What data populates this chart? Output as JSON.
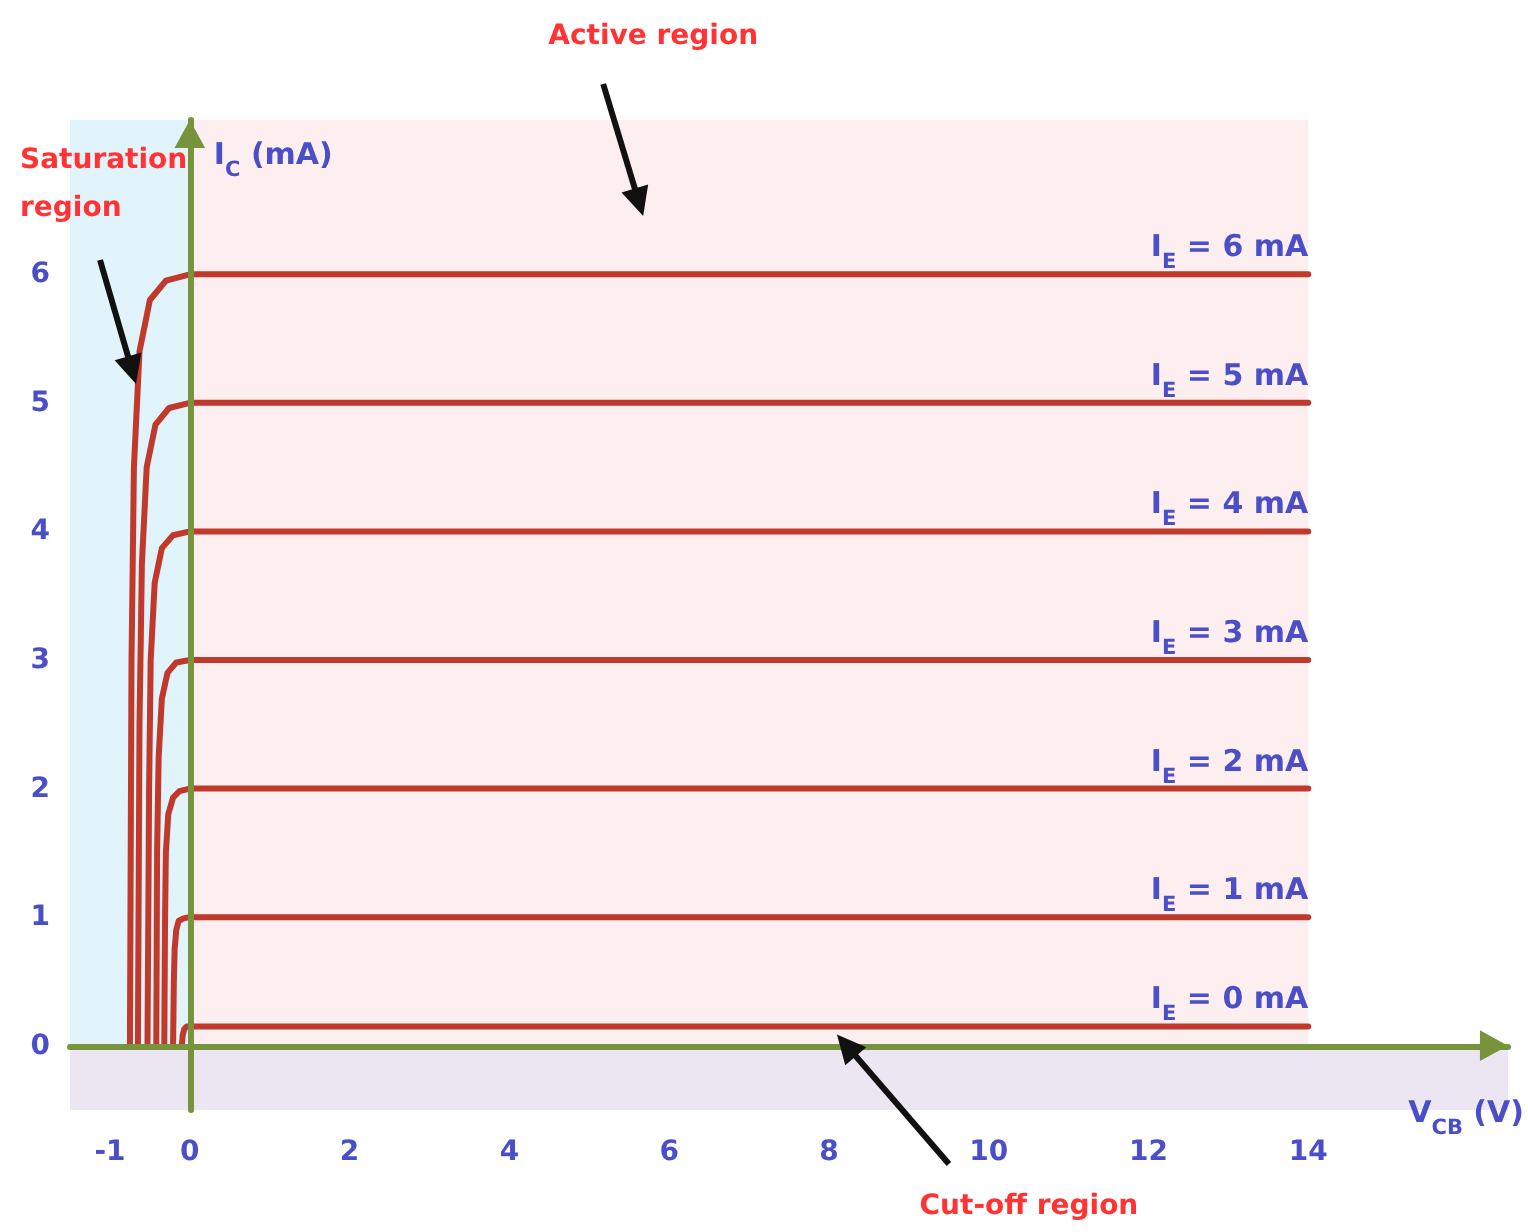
{
  "chart_data": {
    "type": "line",
    "xlabel": "V$_{CB}$ (V)",
    "ylabel": "I$_{C}$ (mA)",
    "xlim": [
      -1.5,
      16.5
    ],
    "ylim": [
      -0.5,
      7.2
    ],
    "xticks": [
      -1,
      0,
      2,
      4,
      6,
      8,
      10,
      12,
      14
    ],
    "yticks": [
      0,
      1,
      2,
      3,
      4,
      5,
      6
    ],
    "marker": "none",
    "line_style": "solid",
    "series": [
      {
        "name": "I$_{E}$ = 6 mA",
        "color": "#c0392b",
        "x": [
          -0.75,
          -0.73,
          -0.7,
          -0.63,
          -0.5,
          -0.3,
          0,
          14
        ],
        "values": [
          0,
          3,
          4.5,
          5.4,
          5.8,
          5.95,
          6,
          6
        ]
      },
      {
        "name": "I$_{E}$ = 5 mA",
        "color": "#c0392b",
        "x": [
          -0.65,
          -0.63,
          -0.6,
          -0.54,
          -0.43,
          -0.26,
          0,
          14
        ],
        "values": [
          0,
          2.5,
          3.75,
          4.5,
          4.83,
          4.96,
          5,
          5
        ]
      },
      {
        "name": "I$_{E}$ = 4 mA",
        "color": "#c0392b",
        "x": [
          -0.53,
          -0.51,
          -0.49,
          -0.44,
          -0.35,
          -0.21,
          0,
          14
        ],
        "values": [
          0,
          2,
          3,
          3.6,
          3.87,
          3.97,
          4,
          4
        ]
      },
      {
        "name": "I$_{E}$ = 3 mA",
        "color": "#c0392b",
        "x": [
          -0.42,
          -0.41,
          -0.39,
          -0.35,
          -0.28,
          -0.17,
          0,
          14
        ],
        "values": [
          0,
          1.5,
          2.25,
          2.7,
          2.9,
          2.98,
          3,
          3
        ]
      },
      {
        "name": "I$_{E}$ = 2 mA",
        "color": "#c0392b",
        "x": [
          -0.32,
          -0.31,
          -0.3,
          -0.27,
          -0.21,
          -0.13,
          0,
          14
        ],
        "values": [
          0,
          1,
          1.5,
          1.8,
          1.93,
          1.98,
          2,
          2
        ]
      },
      {
        "name": "I$_{E}$ = 1 mA",
        "color": "#c0392b",
        "x": [
          -0.21,
          -0.2,
          -0.19,
          -0.17,
          -0.14,
          -0.08,
          0,
          14
        ],
        "values": [
          0,
          0.5,
          0.75,
          0.9,
          0.97,
          0.99,
          1,
          1
        ]
      },
      {
        "name": "I$_{E}$ = 0 mA",
        "color": "#c0392b",
        "x": [
          -0.1,
          -0.09,
          -0.07,
          -0.04,
          0,
          14
        ],
        "values": [
          0,
          0.08,
          0.13,
          0.15,
          0.15,
          0.15
        ]
      }
    ],
    "bands": [
      {
        "axis": "x",
        "from": -1.5,
        "to": 0,
        "label": "Saturation region",
        "color": "#e1f3fb"
      },
      {
        "axis": "x",
        "from": 0,
        "to": 14,
        "label": "Active region",
        "color": "#fdeef0"
      },
      {
        "axis": "y",
        "from": -0.5,
        "to": 0,
        "label": "Cut-off region",
        "color": "#ece6f3"
      }
    ]
  }
}
